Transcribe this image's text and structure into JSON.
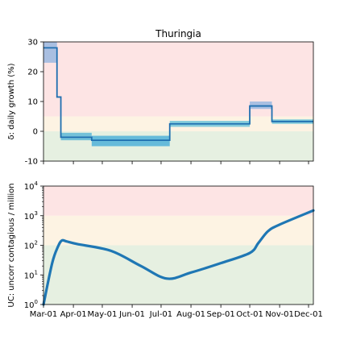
{
  "chart_data": [
    {
      "type": "line",
      "title": "Thuringia",
      "ylabel": "δ: daily growth (%)",
      "ylim": [
        -10,
        30
      ],
      "yticks": [
        -10,
        0,
        10,
        20,
        30
      ],
      "xlim": [
        "2020-03-01",
        "2020-12-06"
      ],
      "background_bands": [
        {
          "from": -10,
          "to": 0,
          "color": "#e6f0e1"
        },
        {
          "from": 0,
          "to": 5,
          "color": "#fdf3e3"
        },
        {
          "from": 5,
          "to": 30,
          "color": "#fde4e4"
        }
      ],
      "series": [
        {
          "step_segments": [
            {
              "start": "2020-03-01",
              "end": "2020-03-15",
              "value": 28
            },
            {
              "start": "2020-03-15",
              "end": "2020-03-19",
              "value": 11.5
            },
            {
              "start": "2020-03-19",
              "end": "2020-04-20",
              "value": -2
            },
            {
              "start": "2020-04-20",
              "end": "2020-07-10",
              "value": -3
            },
            {
              "start": "2020-07-10",
              "end": "2020-10-01",
              "value": 2.5
            },
            {
              "start": "2020-10-01",
              "end": "2020-10-24",
              "value": 8.5
            },
            {
              "start": "2020-10-24",
              "end": "2020-12-06",
              "value": 3.3
            }
          ],
          "bands": [
            {
              "start": "2020-03-01",
              "end": "2020-03-15",
              "low": 23,
              "high": 30,
              "color": "#9ab8e0"
            },
            {
              "start": "2020-03-19",
              "end": "2020-04-20",
              "low": -3,
              "high": -0.5,
              "color": "#5fb9d6"
            },
            {
              "start": "2020-04-20",
              "end": "2020-07-10",
              "low": -5,
              "high": -1.5,
              "color": "#4fb1d8"
            },
            {
              "start": "2020-07-10",
              "end": "2020-10-01",
              "low": 1.5,
              "high": 3.5,
              "color": "#6fc4db"
            },
            {
              "start": "2020-10-01",
              "end": "2020-10-24",
              "low": 7.5,
              "high": 10,
              "color": "#9ab8e0"
            },
            {
              "start": "2020-10-24",
              "end": "2020-12-06",
              "low": 2.5,
              "high": 4,
              "color": "#6fc4db"
            }
          ]
        }
      ]
    },
    {
      "type": "line",
      "ylabel": "UC: uncorr contagious / million",
      "yscale": "log",
      "ylim": [
        1,
        10000
      ],
      "yticks": [
        {
          "base": "10",
          "exp": "0",
          "value": 1
        },
        {
          "base": "10",
          "exp": "1",
          "value": 10
        },
        {
          "base": "10",
          "exp": "2",
          "value": 100
        },
        {
          "base": "10",
          "exp": "3",
          "value": 1000
        },
        {
          "base": "10",
          "exp": "4",
          "value": 10000
        }
      ],
      "xlim": [
        "2020-03-01",
        "2020-12-06"
      ],
      "xticks": [
        "Mar-01",
        "Apr-01",
        "May-01",
        "Jun-01",
        "Jul-01",
        "Aug-01",
        "Sep-01",
        "Oct-01",
        "Nov-01",
        "Dec-01"
      ],
      "background_bands": [
        {
          "from": 1,
          "to": 100,
          "color": "#e6f0e1"
        },
        {
          "from": 100,
          "to": 1000,
          "color": "#fdf3e3"
        },
        {
          "from": 1000,
          "to": 10000,
          "color": "#fde4e4"
        }
      ],
      "series": [
        {
          "color": "#1f77b4",
          "x": [
            "2020-03-01",
            "2020-03-10",
            "2020-03-16",
            "2020-03-20",
            "2020-03-25",
            "2020-04-05",
            "2020-05-10",
            "2020-06-10",
            "2020-07-07",
            "2020-08-01",
            "2020-09-01",
            "2020-10-01",
            "2020-10-10",
            "2020-10-20",
            "2020-11-01",
            "2020-12-06"
          ],
          "y": [
            1,
            25,
            90,
            145,
            135,
            110,
            65,
            20,
            7.5,
            12,
            25,
            55,
            120,
            300,
            500,
            1500
          ]
        }
      ]
    }
  ]
}
